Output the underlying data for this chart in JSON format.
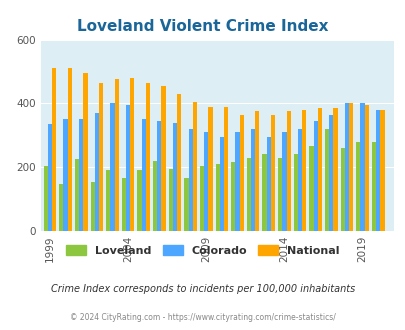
{
  "title": "Loveland Violent Crime Index",
  "ylim": [
    0,
    600
  ],
  "yticks": [
    0,
    200,
    400,
    600
  ],
  "xtick_labels": [
    "1999",
    "2004",
    "2009",
    "2014",
    "2019"
  ],
  "xtick_positions": [
    1999,
    2004,
    2009,
    2014,
    2019
  ],
  "color_loveland": "#8dc63f",
  "color_colorado": "#4da6ff",
  "color_national": "#ffa500",
  "bg_color": "#ddeef5",
  "subtitle": "Crime Index corresponds to incidents per 100,000 inhabitants",
  "footer": "© 2024 CityRating.com - https://www.cityrating.com/crime-statistics/",
  "legend_labels": [
    "Loveland",
    "Colorado",
    "National"
  ],
  "bar_width": 0.27,
  "years": [
    1999,
    2000,
    2001,
    2002,
    2003,
    2004,
    2005,
    2006,
    2007,
    2008,
    2009,
    2010,
    2011,
    2012,
    2013,
    2014,
    2015,
    2016,
    2017,
    2018,
    2019,
    2020
  ],
  "loveland_data": [
    205,
    148,
    225,
    155,
    190,
    165,
    190,
    220,
    195,
    165,
    205,
    210,
    215,
    230,
    240,
    230,
    240,
    265,
    320,
    260,
    280,
    280
  ],
  "colorado_data": [
    335,
    350,
    350,
    370,
    400,
    395,
    350,
    345,
    340,
    320,
    310,
    295,
    310,
    320,
    295,
    310,
    320,
    345,
    365,
    400,
    400,
    380
  ],
  "national_data": [
    510,
    510,
    495,
    465,
    475,
    480,
    465,
    455,
    430,
    405,
    390,
    390,
    365,
    375,
    365,
    375,
    380,
    385,
    385,
    400,
    395,
    380
  ]
}
